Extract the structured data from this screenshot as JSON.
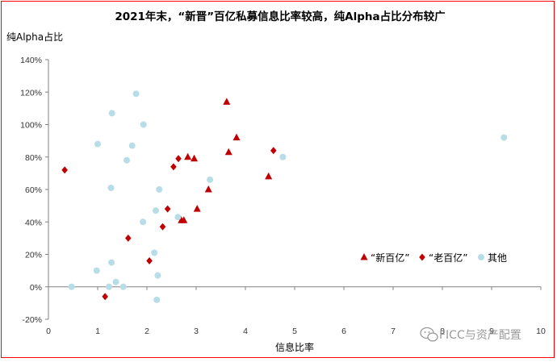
{
  "chart_data": {
    "type": "scatter",
    "title": "2021年末，“新晋”百亿私募信息比率较高，纯Alpha占比分布较广",
    "xlabel": "信息比率",
    "ylabel": "纯Alpha占比",
    "xlim": [
      0,
      10
    ],
    "ylim": [
      -20,
      140
    ],
    "x_ticks": [
      0,
      1,
      2,
      3,
      4,
      5,
      6,
      7,
      8,
      9,
      10
    ],
    "y_ticks": [
      -20,
      0,
      20,
      40,
      60,
      80,
      100,
      120,
      140
    ],
    "y_unit": "%",
    "grid": false,
    "legend_position": "right",
    "series": [
      {
        "name": "“新百亿”",
        "marker": "triangle",
        "color": "#c00000",
        "points": [
          {
            "x": 3.62,
            "y": 114
          },
          {
            "x": 3.82,
            "y": 92
          },
          {
            "x": 3.66,
            "y": 83
          },
          {
            "x": 2.83,
            "y": 80
          },
          {
            "x": 2.96,
            "y": 79
          },
          {
            "x": 4.47,
            "y": 68
          },
          {
            "x": 3.25,
            "y": 60
          },
          {
            "x": 3.02,
            "y": 48
          },
          {
            "x": 2.7,
            "y": 41
          },
          {
            "x": 2.75,
            "y": 41
          }
        ]
      },
      {
        "name": "“老百亿”",
        "marker": "diamond",
        "color": "#c00000",
        "points": [
          {
            "x": 0.33,
            "y": 72
          },
          {
            "x": 4.57,
            "y": 84
          },
          {
            "x": 2.64,
            "y": 79
          },
          {
            "x": 2.54,
            "y": 74
          },
          {
            "x": 2.42,
            "y": 48
          },
          {
            "x": 2.32,
            "y": 37
          },
          {
            "x": 1.62,
            "y": 30
          },
          {
            "x": 2.05,
            "y": 16
          },
          {
            "x": 1.15,
            "y": -6
          }
        ]
      },
      {
        "name": "其他",
        "marker": "circle",
        "color": "#b7dde8",
        "points": [
          {
            "x": 1.78,
            "y": 119
          },
          {
            "x": 1.29,
            "y": 107
          },
          {
            "x": 1.93,
            "y": 100
          },
          {
            "x": 1.0,
            "y": 88
          },
          {
            "x": 1.7,
            "y": 87
          },
          {
            "x": 1.59,
            "y": 78
          },
          {
            "x": 9.25,
            "y": 92
          },
          {
            "x": 4.76,
            "y": 80
          },
          {
            "x": 3.28,
            "y": 66
          },
          {
            "x": 1.27,
            "y": 61
          },
          {
            "x": 2.25,
            "y": 60
          },
          {
            "x": 2.18,
            "y": 47
          },
          {
            "x": 1.92,
            "y": 40
          },
          {
            "x": 2.63,
            "y": 43
          },
          {
            "x": 2.15,
            "y": 21
          },
          {
            "x": 1.28,
            "y": 15
          },
          {
            "x": 0.98,
            "y": 10
          },
          {
            "x": 2.22,
            "y": 7
          },
          {
            "x": 1.37,
            "y": 3
          },
          {
            "x": 0.47,
            "y": 0
          },
          {
            "x": 1.23,
            "y": 0
          },
          {
            "x": 1.52,
            "y": 0
          },
          {
            "x": 2.2,
            "y": -8
          }
        ]
      }
    ]
  },
  "watermark": "FICC与资产配置",
  "watermark_icon": "wechat-icon"
}
